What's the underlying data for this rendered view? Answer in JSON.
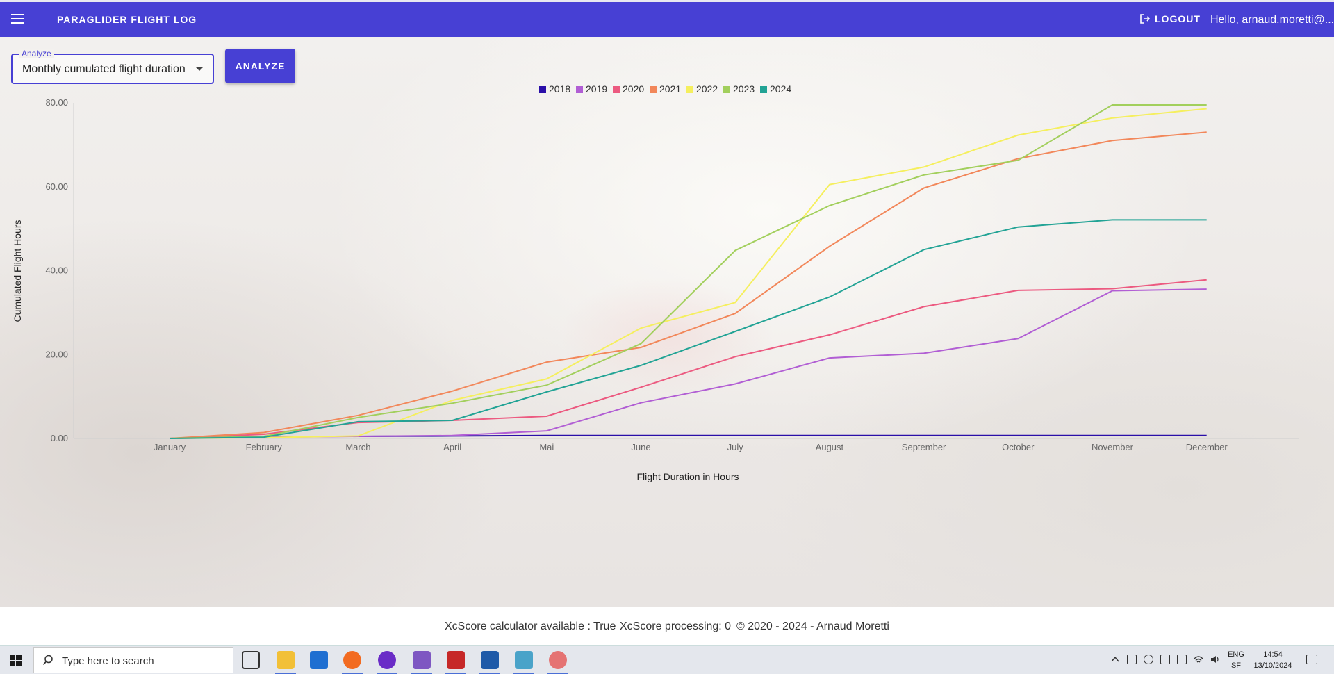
{
  "appbar": {
    "title": "PARAGLIDER FLIGHT LOG",
    "logout_label": "LOGOUT",
    "greeting": "Hello, arnaud.moretti@..."
  },
  "controls": {
    "select_label": "Analyze",
    "select_value": "Monthly cumulated flight duration",
    "analyze_label": "ANALYZE"
  },
  "chart_data": {
    "type": "line",
    "title": "",
    "xlabel": "Flight Duration in Hours",
    "ylabel": "Cumulated Flight Hours",
    "ylim": [
      0,
      80
    ],
    "yticks": [
      "0.00",
      "20.00",
      "40.00",
      "60.00",
      "80.00"
    ],
    "legend_position": "top-center",
    "grid": false,
    "categories": [
      "January",
      "February",
      "March",
      "April",
      "Mai",
      "June",
      "July",
      "August",
      "September",
      "October",
      "November",
      "December"
    ],
    "series": [
      {
        "name": "2018",
        "color": "#2a0fa8",
        "values": [
          0,
          0.5,
          0.5,
          0.6,
          0.7,
          0.7,
          0.7,
          0.7,
          0.7,
          0.7,
          0.7,
          0.7
        ]
      },
      {
        "name": "2019",
        "color": "#b15ed4",
        "values": [
          0,
          0.3,
          0.5,
          0.7,
          1.8,
          8.5,
          13,
          19.2,
          20.3,
          23.8,
          35.2,
          35.6
        ]
      },
      {
        "name": "2020",
        "color": "#ec5a80",
        "values": [
          0,
          1.0,
          3.8,
          4.3,
          5.3,
          12.2,
          19.5,
          24.7,
          31.4,
          35.3,
          35.7,
          37.8
        ]
      },
      {
        "name": "2021",
        "color": "#f2875a",
        "values": [
          0,
          1.4,
          5.5,
          11.3,
          18.2,
          21.7,
          29.8,
          45.8,
          59.7,
          66.7,
          71.0,
          73.0
        ]
      },
      {
        "name": "2022",
        "color": "#f5ef5e",
        "values": [
          0,
          0.2,
          0.6,
          9.1,
          14.2,
          26.3,
          32.4,
          60.5,
          64.7,
          72.3,
          76.4,
          78.6
        ]
      },
      {
        "name": "2023",
        "color": "#a2cf5c",
        "values": [
          0,
          0.5,
          5.0,
          8.4,
          12.7,
          22.6,
          44.8,
          55.5,
          62.8,
          66.3,
          79.5,
          79.5
        ]
      },
      {
        "name": "2024",
        "color": "#22a395",
        "values": [
          0,
          0.3,
          4.0,
          4.3,
          11.1,
          17.4,
          25.5,
          33.7,
          45.0,
          50.4,
          52.1,
          52.1
        ]
      }
    ]
  },
  "footer": {
    "calculator": "XcScore calculator available : True",
    "processing": "XcScore processing: 0",
    "copyright": "© 2020 - 2024 - Arnaud Moretti"
  },
  "taskbar": {
    "search_placeholder": "Type here to search",
    "lang": "ENG",
    "lang_sub": "SF",
    "time": "14:54",
    "date": "13/10/2024"
  }
}
